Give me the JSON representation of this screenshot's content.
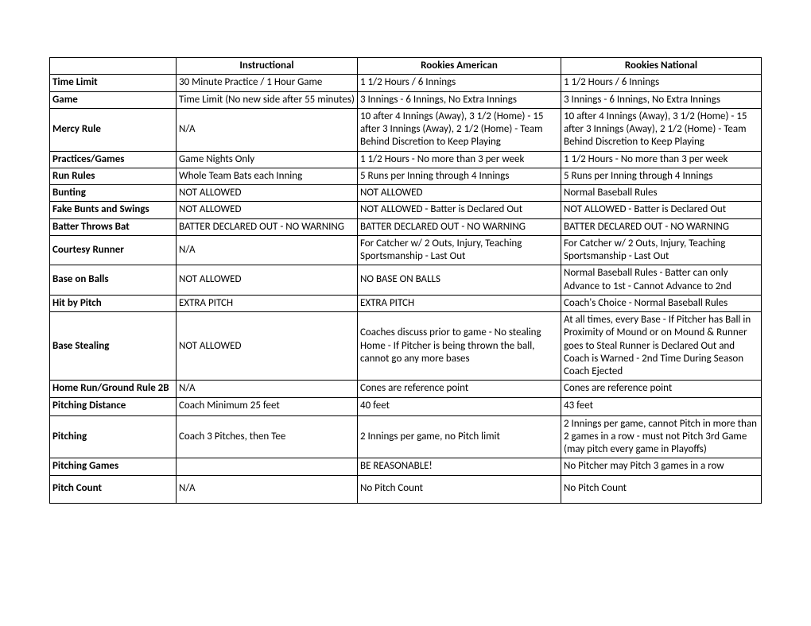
{
  "headers": {
    "blank": "",
    "instructional": "Instructional",
    "rookies_american": "Rookies American",
    "rookies_national": "Rookies National"
  },
  "rows": {
    "time_limit": {
      "label": "Time Limit",
      "instructional": "30 Minute Practice / 1 Hour Game",
      "american": "1 1/2 Hours / 6 Innings",
      "national": "1 1/2 Hours / 6 Innings"
    },
    "game": {
      "label": "Game",
      "instructional": "Time Limit (No new side after 55 minutes)",
      "american": "3 Innings - 6 Innings, No Extra Innings",
      "national": "3 Innings - 6 Innings, No Extra Innings"
    },
    "mercy_rule": {
      "label": "Mercy Rule",
      "instructional": "N/A",
      "american": "10 after 4 Innings (Away), 3 1/2 (Home) - 15 after 3 Innings (Away), 2 1/2 (Home) - Team Behind Discretion to Keep Playing",
      "national": "10 after 4 Innings (Away), 3 1/2 (Home) - 15 after 3 Innings (Away), 2 1/2 (Home) - Team Behind Discretion to Keep Playing"
    },
    "practices_games": {
      "label": "Practices/Games",
      "instructional": "Game Nights Only",
      "american": "1 1/2 Hours - No more than 3 per week",
      "national": "1 1/2 Hours - No more than 3 per week"
    },
    "run_rules": {
      "label": "Run Rules",
      "instructional": "Whole Team Bats each Inning",
      "american": "5 Runs per Inning through 4 Innings",
      "national": "5 Runs per Inning through 4 Innings"
    },
    "bunting": {
      "label": "Bunting",
      "instructional": "NOT ALLOWED",
      "american": "NOT ALLOWED",
      "national": "Normal Baseball Rules"
    },
    "fake_bunts": {
      "label": "Fake Bunts and Swings",
      "instructional": "NOT ALLOWED",
      "american": "NOT ALLOWED - Batter is Declared Out",
      "national": "NOT ALLOWED - Batter is Declared Out"
    },
    "batter_throws": {
      "label": "Batter Throws Bat",
      "instructional": "BATTER DECLARED OUT - NO WARNING",
      "american": "BATTER DECLARED OUT - NO WARNING",
      "national": "BATTER DECLARED OUT - NO WARNING"
    },
    "courtesy_runner": {
      "label": "Courtesy Runner",
      "instructional": "N/A",
      "american": "For Catcher w/ 2 Outs, Injury, Teaching Sportsmanship - Last Out",
      "national": "For Catcher w/ 2 Outs, Injury, Teaching Sportsmanship - Last Out"
    },
    "base_on_balls": {
      "label": "Base on Balls",
      "instructional": "NOT ALLOWED",
      "american": "NO BASE ON BALLS",
      "national": "Normal Baseball Rules - Batter can only Advance to 1st - Cannot Advance to 2nd"
    },
    "hit_by_pitch": {
      "label": "Hit by Pitch",
      "instructional": "EXTRA PITCH",
      "american": "EXTRA PITCH",
      "national": "Coach's Choice - Normal Baseball Rules"
    },
    "base_stealing": {
      "label": "Base Stealing",
      "instructional": "NOT ALLOWED",
      "american": "Coaches discuss prior to game - No stealing Home - If Pitcher is being thrown the ball, cannot go any more bases",
      "national": "At all times, every Base - If Pitcher has Ball in Proximity of Mound or on Mound & Runner goes to Steal Runner is Declared Out and Coach is Warned - 2nd Time During Season Coach Ejected"
    },
    "home_run": {
      "label": "Home Run/Ground Rule 2B",
      "instructional": "N/A",
      "american": "Cones are reference point",
      "national": "Cones are reference point"
    },
    "pitching_distance": {
      "label": "Pitching Distance",
      "instructional": "Coach Minimum 25 feet",
      "american": "40 feet",
      "national": "43 feet"
    },
    "pitching": {
      "label": "Pitching",
      "instructional": "Coach 3 Pitches, then Tee",
      "american": "2 Innings per game, no Pitch limit",
      "national": "2 Innings per game, cannot Pitch in more than 2 games in a row - must not Pitch 3rd Game (may pitch every game in Playoffs)"
    },
    "pitching_games": {
      "label": "Pitching Games",
      "instructional": "",
      "american": "BE REASONABLE!",
      "national": "No Pitcher may Pitch 3 games in a row"
    },
    "pitch_count": {
      "label": "Pitch Count",
      "instructional": "N/A",
      "american": "No Pitch Count",
      "national": "No Pitch Count"
    }
  }
}
